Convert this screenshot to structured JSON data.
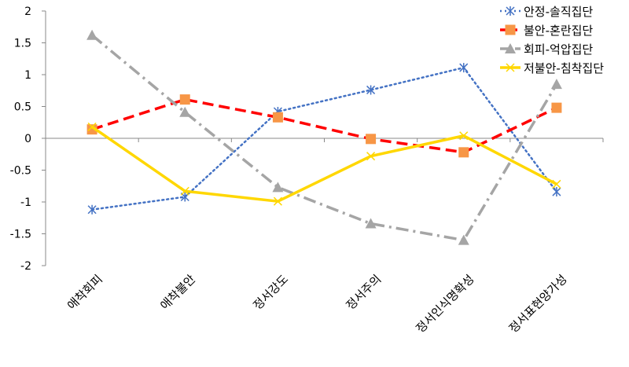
{
  "chart_data": {
    "type": "line",
    "categories": [
      "애착회피",
      "애착불안",
      "정서강도",
      "정서주의",
      "정서인식명확성",
      "정서표현양가성"
    ],
    "ylim": [
      -2,
      2
    ],
    "yticks": [
      2,
      1.5,
      1,
      0.5,
      0,
      -0.5,
      -1,
      -1.5,
      -2
    ],
    "ytick_labels": [
      "2",
      "1.5",
      "1",
      "0.5",
      "0",
      "-0.5",
      "-1",
      "-1.5",
      "-2"
    ],
    "grid": false,
    "legend_position": "top-right",
    "series": [
      {
        "name": "안정-솔직집단",
        "color": "#4472C4",
        "dash": "dotted",
        "marker": "asterisk",
        "values": [
          -1.12,
          -0.92,
          0.42,
          0.76,
          1.11,
          -0.84
        ]
      },
      {
        "name": "불안-혼란집단",
        "color": "#FF0000",
        "dash": "dashed",
        "marker": "square",
        "marker_color": "#F79646",
        "values": [
          0.14,
          0.61,
          0.33,
          -0.01,
          -0.22,
          0.48
        ]
      },
      {
        "name": "회피-억압집단",
        "color": "#A5A5A5",
        "dash": "dashdot",
        "marker": "triangle",
        "values": [
          1.62,
          0.41,
          -0.77,
          -1.34,
          -1.6,
          0.85
        ]
      },
      {
        "name": "저불안-침착집단",
        "color": "#FFD700",
        "dash": "solid",
        "marker": "x",
        "values": [
          0.18,
          -0.83,
          -0.99,
          -0.28,
          0.04,
          -0.72
        ]
      }
    ]
  }
}
